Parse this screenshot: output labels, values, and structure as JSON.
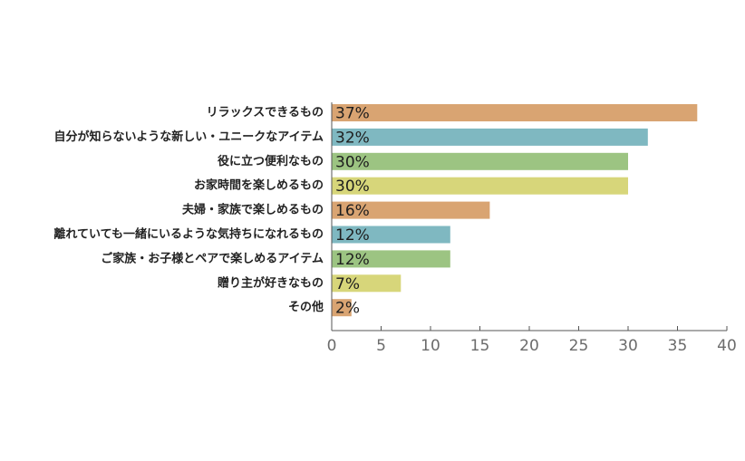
{
  "chart_data": {
    "type": "bar",
    "orientation": "horizontal",
    "categories": [
      "リラックスできるもの",
      "自分が知らないような新しい・ユニークなアイテム",
      "役に立つ便利なもの",
      "お家時間を楽しめるもの",
      "夫婦・家族で楽しめるもの",
      "離れていても一緒にいるような気持ちになれるもの",
      "ご家族・お子様とペアで楽しめるアイテム",
      "贈り主が好きなもの",
      "その他"
    ],
    "values": [
      37,
      32,
      30,
      30,
      16,
      12,
      12,
      7,
      2
    ],
    "data_labels": [
      "37%",
      "32%",
      "30%",
      "30%",
      "16%",
      "12%",
      "12%",
      "7%",
      "2%"
    ],
    "bar_colors": [
      "#d9a472",
      "#7fb8c1",
      "#9cc482",
      "#d7d67a",
      "#d9a472",
      "#7fb8c1",
      "#9cc482",
      "#d7d67a",
      "#d9a472"
    ],
    "x_ticks": [
      "0",
      "5",
      "10",
      "15",
      "20",
      "25",
      "30",
      "35",
      "40"
    ],
    "xlim": [
      0,
      40
    ],
    "title": "",
    "xlabel": "",
    "ylabel": "",
    "grid": false,
    "legend": "none"
  }
}
